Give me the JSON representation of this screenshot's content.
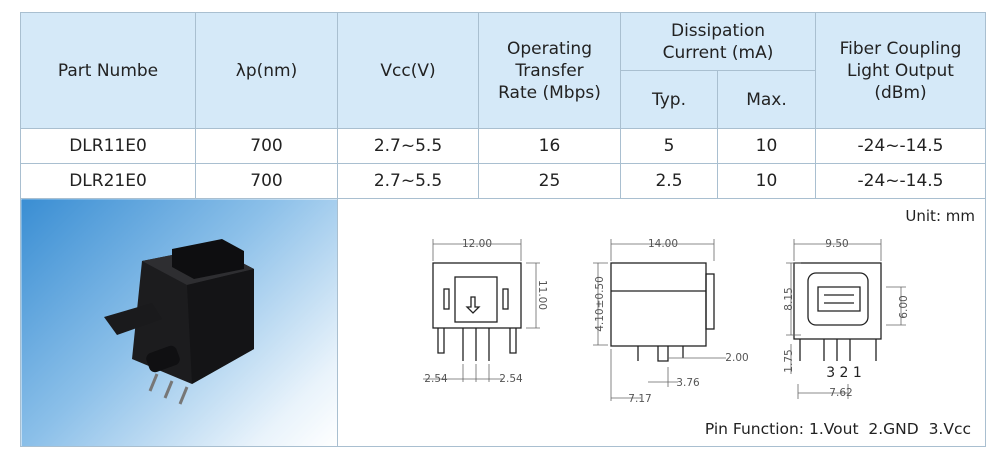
{
  "table": {
    "header": {
      "part": "Part Numbe",
      "wavelength": "λp(nm)",
      "vcc": "Vcc(V)",
      "rate": [
        "Operating",
        "Transfer",
        "Rate (Mbps)"
      ],
      "current": [
        "Dissipation",
        "Current (mA)"
      ],
      "typ": "Typ.",
      "max": "Max.",
      "output": [
        "Fiber Coupling",
        "Light Output",
        "(dBm)"
      ]
    },
    "rows": [
      [
        "DLR11E0",
        "700",
        "2.7~5.5",
        "16",
        "5",
        "10",
        "-24~-14.5"
      ],
      [
        "DLR21E0",
        "700",
        "2.7~5.5",
        "25",
        "2.5",
        "10",
        "-24~-14.5"
      ]
    ]
  },
  "drawing": {
    "unit": "Unit: mm",
    "front": {
      "width": "12.00",
      "height": "11.00",
      "pitch_left": "2.54",
      "pitch_right": "2.54"
    },
    "side": {
      "depth": "14.00",
      "offset": "4.10±0.50",
      "pin": "2.00",
      "pin_pos": "3.76",
      "base": "7.17"
    },
    "back": {
      "width": "9.50",
      "height": "8.15",
      "port": "6.00",
      "pin_len": "1.75",
      "pins": "3 2 1",
      "span": "7.62"
    },
    "pin_function": "Pin Function: 1.Vout  2.GND  3.Vcc"
  }
}
